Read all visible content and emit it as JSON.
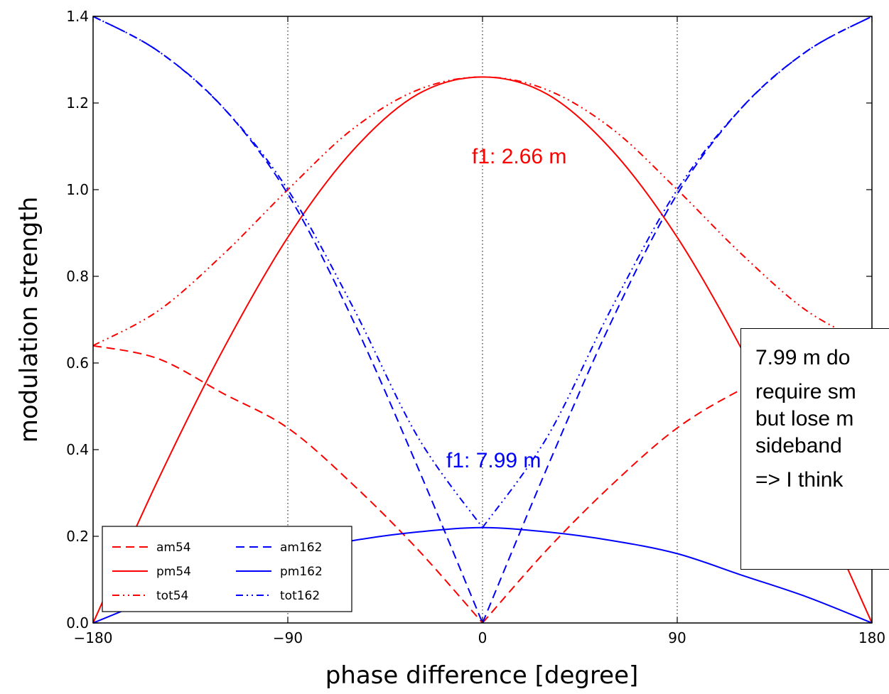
{
  "chart_data": {
    "type": "line",
    "xlabel": "phase difference [degree]",
    "ylabel": "modulation strength",
    "xlim": [
      -180,
      180
    ],
    "ylim": [
      0,
      1.4
    ],
    "xticks": [
      -180,
      -90,
      0,
      90,
      180
    ],
    "xtick_labels": [
      "−180",
      "−90",
      "0",
      "90",
      "180"
    ],
    "yticks": [
      0.0,
      0.2,
      0.4,
      0.6,
      0.8,
      1.0,
      1.2,
      1.4
    ],
    "ytick_labels": [
      "0.0",
      "0.2",
      "0.4",
      "0.6",
      "0.8",
      "1.0",
      "1.2",
      "1.4"
    ],
    "grid": "vertical dotted",
    "legend_position": "lower-left",
    "series": [
      {
        "name": "am54",
        "color": "#ff0000",
        "style": "dashed",
        "points": [
          [
            -180,
            0.64
          ],
          [
            -150,
            0.61
          ],
          [
            -120,
            0.53
          ],
          [
            -90,
            0.45
          ],
          [
            -60,
            0.32
          ],
          [
            -30,
            0.17
          ],
          [
            0,
            0.0
          ],
          [
            30,
            0.17
          ],
          [
            60,
            0.32
          ],
          [
            90,
            0.45
          ],
          [
            120,
            0.54
          ],
          [
            150,
            0.61
          ],
          [
            180,
            0.64
          ]
        ]
      },
      {
        "name": "pm54",
        "color": "#ff0000",
        "style": "solid",
        "points": [
          [
            -180,
            0.0
          ],
          [
            -150,
            0.33
          ],
          [
            -120,
            0.63
          ],
          [
            -90,
            0.89
          ],
          [
            -60,
            1.09
          ],
          [
            -30,
            1.22
          ],
          [
            0,
            1.26
          ],
          [
            30,
            1.22
          ],
          [
            60,
            1.09
          ],
          [
            90,
            0.89
          ],
          [
            120,
            0.63
          ],
          [
            150,
            0.33
          ],
          [
            180,
            0.0
          ]
        ]
      },
      {
        "name": "tot54",
        "color": "#ff0000",
        "style": "dashdotdot",
        "points": [
          [
            -180,
            0.64
          ],
          [
            -150,
            0.72
          ],
          [
            -120,
            0.85
          ],
          [
            -90,
            1.0
          ],
          [
            -60,
            1.14
          ],
          [
            -30,
            1.23
          ],
          [
            0,
            1.26
          ],
          [
            30,
            1.23
          ],
          [
            60,
            1.14
          ],
          [
            90,
            1.0
          ],
          [
            120,
            0.85
          ],
          [
            150,
            0.72
          ],
          [
            180,
            0.64
          ]
        ]
      },
      {
        "name": "am162",
        "color": "#0000ff",
        "style": "dashed",
        "points": [
          [
            -180,
            1.4
          ],
          [
            -150,
            1.32
          ],
          [
            -120,
            1.19
          ],
          [
            -90,
            0.99
          ],
          [
            -60,
            0.7
          ],
          [
            -30,
            0.36
          ],
          [
            0,
            0.0
          ],
          [
            30,
            0.36
          ],
          [
            60,
            0.7
          ],
          [
            90,
            0.99
          ],
          [
            120,
            1.19
          ],
          [
            150,
            1.32
          ],
          [
            180,
            1.4
          ]
        ]
      },
      {
        "name": "pm162",
        "color": "#0000ff",
        "style": "solid",
        "points": [
          [
            -180,
            0.0
          ],
          [
            -150,
            0.06
          ],
          [
            -120,
            0.11
          ],
          [
            -90,
            0.16
          ],
          [
            -60,
            0.19
          ],
          [
            -30,
            0.21
          ],
          [
            0,
            0.22
          ],
          [
            30,
            0.21
          ],
          [
            60,
            0.19
          ],
          [
            90,
            0.16
          ],
          [
            120,
            0.11
          ],
          [
            150,
            0.06
          ],
          [
            180,
            0.0
          ]
        ]
      },
      {
        "name": "tot162",
        "color": "#0000ff",
        "style": "dashdotdot",
        "points": [
          [
            -180,
            1.4
          ],
          [
            -150,
            1.32
          ],
          [
            -120,
            1.19
          ],
          [
            -90,
            1.0
          ],
          [
            -60,
            0.73
          ],
          [
            -30,
            0.43
          ],
          [
            0,
            0.22
          ],
          [
            30,
            0.43
          ],
          [
            60,
            0.73
          ],
          [
            90,
            1.0
          ],
          [
            120,
            1.19
          ],
          [
            150,
            1.32
          ],
          [
            180,
            1.4
          ]
        ]
      }
    ],
    "annotations": [
      {
        "text": "f1: 2.66 m",
        "color": "#ff0000"
      },
      {
        "text": "f1: 7.99 m",
        "color": "#0000ff"
      }
    ]
  },
  "callout": {
    "lines": [
      "7.99 m do",
      "require sm",
      "but lose m",
      "sideband",
      "=> I think"
    ]
  }
}
